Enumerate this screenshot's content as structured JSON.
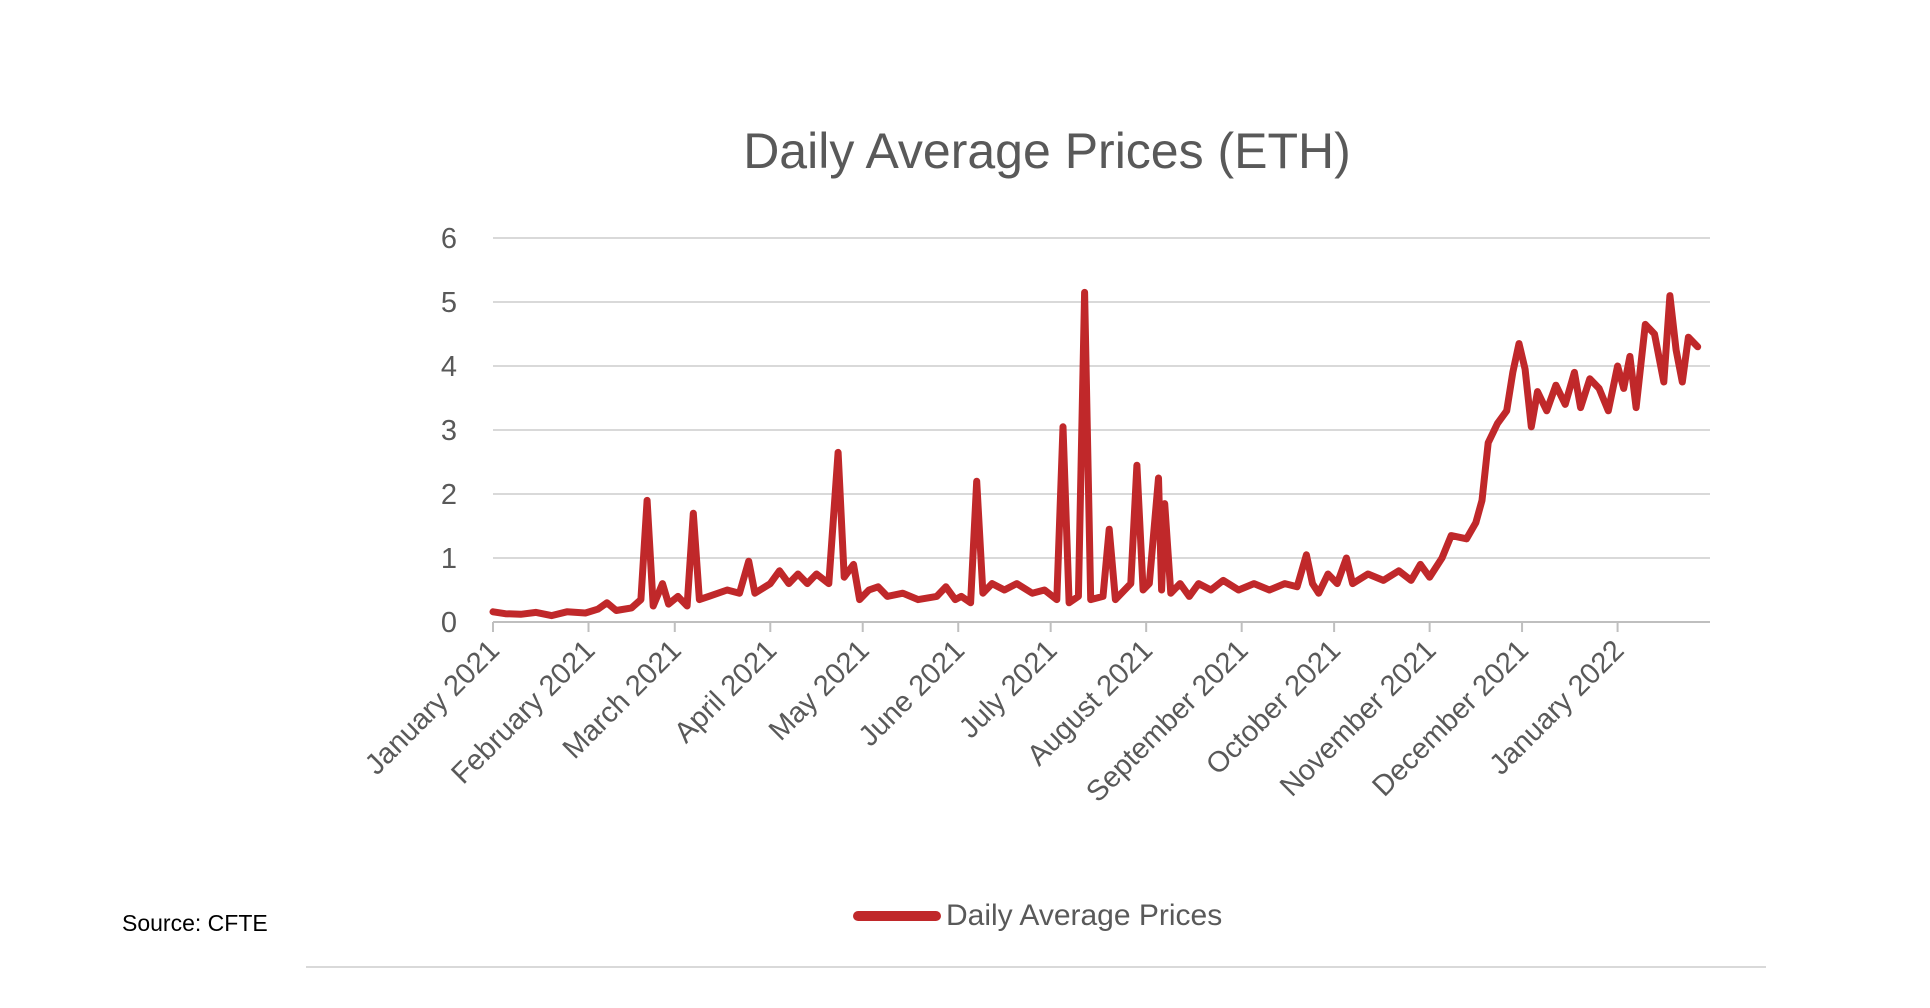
{
  "chart_data": {
    "type": "line",
    "title": "Daily Average Prices (ETH)",
    "xlabel": "",
    "ylabel": "",
    "ylim": [
      0,
      6
    ],
    "yticks": [
      0,
      1,
      2,
      3,
      4,
      5,
      6
    ],
    "grid": true,
    "legend_position": "bottom",
    "x_tick_labels": [
      "January 2021",
      "February 2021",
      "March 2021",
      "April 2021",
      "May 2021",
      "June 2021",
      "July 2021",
      "August 2021",
      "September 2021",
      "October 2021",
      "November 2021",
      "December 2021",
      "January 2022"
    ],
    "series": [
      {
        "name": "Daily Average Prices",
        "color": "#c0282a",
        "points": [
          [
            "2021-01-01",
            0.16
          ],
          [
            "2021-01-05",
            0.13
          ],
          [
            "2021-01-10",
            0.12
          ],
          [
            "2021-01-15",
            0.15
          ],
          [
            "2021-01-20",
            0.1
          ],
          [
            "2021-01-25",
            0.16
          ],
          [
            "2021-01-31",
            0.14
          ],
          [
            "2021-02-04",
            0.2
          ],
          [
            "2021-02-07",
            0.3
          ],
          [
            "2021-02-10",
            0.18
          ],
          [
            "2021-02-15",
            0.22
          ],
          [
            "2021-02-18",
            0.35
          ],
          [
            "2021-02-20",
            1.9
          ],
          [
            "2021-02-22",
            0.25
          ],
          [
            "2021-02-25",
            0.6
          ],
          [
            "2021-02-27",
            0.28
          ],
          [
            "2021-03-02",
            0.4
          ],
          [
            "2021-03-05",
            0.25
          ],
          [
            "2021-03-07",
            1.7
          ],
          [
            "2021-03-09",
            0.35
          ],
          [
            "2021-03-12",
            0.4
          ],
          [
            "2021-03-18",
            0.5
          ],
          [
            "2021-03-22",
            0.45
          ],
          [
            "2021-03-25",
            0.95
          ],
          [
            "2021-03-27",
            0.45
          ],
          [
            "2021-04-01",
            0.6
          ],
          [
            "2021-04-04",
            0.8
          ],
          [
            "2021-04-07",
            0.6
          ],
          [
            "2021-04-10",
            0.75
          ],
          [
            "2021-04-13",
            0.6
          ],
          [
            "2021-04-16",
            0.75
          ],
          [
            "2021-04-20",
            0.6
          ],
          [
            "2021-04-23",
            2.65
          ],
          [
            "2021-04-25",
            0.7
          ],
          [
            "2021-04-28",
            0.9
          ],
          [
            "2021-04-30",
            0.35
          ],
          [
            "2021-05-03",
            0.5
          ],
          [
            "2021-05-06",
            0.55
          ],
          [
            "2021-05-09",
            0.4
          ],
          [
            "2021-05-14",
            0.45
          ],
          [
            "2021-05-19",
            0.35
          ],
          [
            "2021-05-25",
            0.4
          ],
          [
            "2021-05-28",
            0.55
          ],
          [
            "2021-05-31",
            0.35
          ],
          [
            "2021-06-02",
            0.4
          ],
          [
            "2021-06-05",
            0.3
          ],
          [
            "2021-06-07",
            2.2
          ],
          [
            "2021-06-09",
            0.45
          ],
          [
            "2021-06-12",
            0.6
          ],
          [
            "2021-06-16",
            0.5
          ],
          [
            "2021-06-20",
            0.6
          ],
          [
            "2021-06-25",
            0.45
          ],
          [
            "2021-06-29",
            0.5
          ],
          [
            "2021-07-03",
            0.35
          ],
          [
            "2021-07-05",
            3.05
          ],
          [
            "2021-07-07",
            0.3
          ],
          [
            "2021-07-10",
            0.4
          ],
          [
            "2021-07-12",
            5.15
          ],
          [
            "2021-07-14",
            0.35
          ],
          [
            "2021-07-18",
            0.4
          ],
          [
            "2021-07-20",
            1.45
          ],
          [
            "2021-07-22",
            0.35
          ],
          [
            "2021-07-27",
            0.6
          ],
          [
            "2021-07-29",
            2.45
          ],
          [
            "2021-07-31",
            0.5
          ],
          [
            "2021-08-02",
            0.6
          ],
          [
            "2021-08-05",
            2.25
          ],
          [
            "2021-08-06",
            0.5
          ],
          [
            "2021-08-07",
            1.85
          ],
          [
            "2021-08-09",
            0.45
          ],
          [
            "2021-08-12",
            0.6
          ],
          [
            "2021-08-15",
            0.4
          ],
          [
            "2021-08-18",
            0.6
          ],
          [
            "2021-08-22",
            0.5
          ],
          [
            "2021-08-26",
            0.65
          ],
          [
            "2021-08-31",
            0.5
          ],
          [
            "2021-09-05",
            0.6
          ],
          [
            "2021-09-10",
            0.5
          ],
          [
            "2021-09-15",
            0.6
          ],
          [
            "2021-09-19",
            0.55
          ],
          [
            "2021-09-22",
            1.05
          ],
          [
            "2021-09-24",
            0.6
          ],
          [
            "2021-09-26",
            0.45
          ],
          [
            "2021-09-29",
            0.75
          ],
          [
            "2021-10-02",
            0.6
          ],
          [
            "2021-10-05",
            1.0
          ],
          [
            "2021-10-07",
            0.6
          ],
          [
            "2021-10-12",
            0.75
          ],
          [
            "2021-10-17",
            0.65
          ],
          [
            "2021-10-22",
            0.8
          ],
          [
            "2021-10-26",
            0.65
          ],
          [
            "2021-10-29",
            0.9
          ],
          [
            "2021-11-01",
            0.7
          ],
          [
            "2021-11-05",
            1.0
          ],
          [
            "2021-11-08",
            1.35
          ],
          [
            "2021-11-13",
            1.3
          ],
          [
            "2021-11-16",
            1.55
          ],
          [
            "2021-11-18",
            1.9
          ],
          [
            "2021-11-20",
            2.8
          ],
          [
            "2021-11-23",
            3.1
          ],
          [
            "2021-11-26",
            3.3
          ],
          [
            "2021-11-28",
            3.9
          ],
          [
            "2021-11-30",
            4.35
          ],
          [
            "2021-12-02",
            3.95
          ],
          [
            "2021-12-04",
            3.05
          ],
          [
            "2021-12-06",
            3.6
          ],
          [
            "2021-12-09",
            3.3
          ],
          [
            "2021-12-12",
            3.7
          ],
          [
            "2021-12-15",
            3.4
          ],
          [
            "2021-12-18",
            3.9
          ],
          [
            "2021-12-20",
            3.35
          ],
          [
            "2021-12-23",
            3.8
          ],
          [
            "2021-12-26",
            3.65
          ],
          [
            "2021-12-29",
            3.3
          ],
          [
            "2022-01-01",
            4.0
          ],
          [
            "2022-01-03",
            3.65
          ],
          [
            "2022-01-05",
            4.15
          ],
          [
            "2022-01-07",
            3.35
          ],
          [
            "2022-01-10",
            4.65
          ],
          [
            "2022-01-13",
            4.5
          ],
          [
            "2022-01-16",
            3.75
          ],
          [
            "2022-01-18",
            5.1
          ],
          [
            "2022-01-20",
            4.25
          ],
          [
            "2022-01-22",
            3.75
          ],
          [
            "2022-01-24",
            4.45
          ],
          [
            "2022-01-27",
            4.3
          ]
        ]
      }
    ]
  },
  "source": "Source: CFTE"
}
